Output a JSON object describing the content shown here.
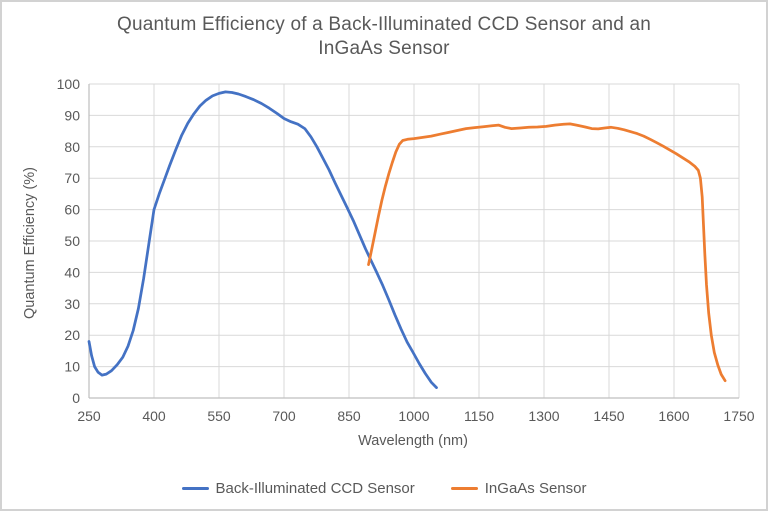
{
  "title": {
    "line1": "Quantum Efficiency of a Back-Illuminated CCD Sensor and an",
    "line2": "InGaAs Sensor"
  },
  "axes": {
    "x_title": "Wavelength (nm)",
    "y_title": "Quantum Efficiency (%)"
  },
  "legend": {
    "items": [
      {
        "label": "Back-Illuminated CCD Sensor",
        "color": "#4472C4"
      },
      {
        "label": "InGaAs Sensor",
        "color": "#ED7D31"
      }
    ]
  },
  "colors": {
    "gridline": "#d9d9d9",
    "axis_line": "#bfbfbf",
    "text": "#595959",
    "background": "#ffffff",
    "frame_border": "#d2d2d2"
  },
  "chart_data": {
    "type": "line",
    "title": "Quantum Efficiency of a Back-Illuminated CCD Sensor and an InGaAs Sensor",
    "xlabel": "Wavelength (nm)",
    "ylabel": "Quantum Efficiency (%)",
    "xlim": [
      250,
      1750
    ],
    "ylim": [
      0,
      100
    ],
    "x_ticks": [
      250,
      400,
      550,
      700,
      850,
      1000,
      1150,
      1300,
      1450,
      1600,
      1750
    ],
    "y_ticks": [
      0,
      10,
      20,
      30,
      40,
      50,
      60,
      70,
      80,
      90,
      100
    ],
    "grid": true,
    "legend_position": "bottom",
    "series": [
      {
        "name": "Back-Illuminated CCD Sensor",
        "color": "#4472C4",
        "points": [
          [
            250,
            18
          ],
          [
            256,
            13.5
          ],
          [
            263,
            10
          ],
          [
            271,
            8.2
          ],
          [
            280,
            7.3
          ],
          [
            290,
            7.6
          ],
          [
            302,
            8.7
          ],
          [
            315,
            10.6
          ],
          [
            328,
            13
          ],
          [
            340,
            16.5
          ],
          [
            352,
            21.5
          ],
          [
            364,
            28.5
          ],
          [
            376,
            38
          ],
          [
            388,
            49
          ],
          [
            400,
            60
          ],
          [
            412,
            65
          ],
          [
            424,
            69.5
          ],
          [
            436,
            74
          ],
          [
            450,
            79
          ],
          [
            464,
            83.7
          ],
          [
            478,
            87.5
          ],
          [
            492,
            90.5
          ],
          [
            506,
            93
          ],
          [
            520,
            94.8
          ],
          [
            535,
            96.2
          ],
          [
            550,
            97
          ],
          [
            565,
            97.5
          ],
          [
            580,
            97.3
          ],
          [
            595,
            96.8
          ],
          [
            612,
            96
          ],
          [
            630,
            95
          ],
          [
            648,
            93.8
          ],
          [
            666,
            92.3
          ],
          [
            684,
            90.6
          ],
          [
            700,
            89
          ],
          [
            716,
            88
          ],
          [
            732,
            87.2
          ],
          [
            748,
            85.8
          ],
          [
            762,
            83.2
          ],
          [
            776,
            80
          ],
          [
            790,
            76.3
          ],
          [
            804,
            72.6
          ],
          [
            818,
            68.5
          ],
          [
            832,
            64.5
          ],
          [
            846,
            60.5
          ],
          [
            860,
            56.5
          ],
          [
            874,
            52
          ],
          [
            888,
            47.5
          ],
          [
            900,
            44
          ],
          [
            914,
            40
          ],
          [
            928,
            35.8
          ],
          [
            942,
            31.2
          ],
          [
            956,
            26.5
          ],
          [
            970,
            22
          ],
          [
            984,
            17.8
          ],
          [
            998,
            14.5
          ],
          [
            1012,
            11
          ],
          [
            1026,
            7.8
          ],
          [
            1040,
            5
          ],
          [
            1052,
            3.3
          ]
        ]
      },
      {
        "name": "InGaAs Sensor",
        "color": "#ED7D31",
        "points": [
          [
            895,
            42.5
          ],
          [
            902,
            47
          ],
          [
            910,
            52.5
          ],
          [
            918,
            58
          ],
          [
            926,
            63
          ],
          [
            934,
            67.5
          ],
          [
            942,
            71.5
          ],
          [
            950,
            75
          ],
          [
            958,
            78.3
          ],
          [
            966,
            80.8
          ],
          [
            974,
            82
          ],
          [
            985,
            82.4
          ],
          [
            1000,
            82.6
          ],
          [
            1020,
            83
          ],
          [
            1040,
            83.4
          ],
          [
            1060,
            84
          ],
          [
            1080,
            84.6
          ],
          [
            1100,
            85.2
          ],
          [
            1120,
            85.8
          ],
          [
            1140,
            86.1
          ],
          [
            1160,
            86.4
          ],
          [
            1180,
            86.7
          ],
          [
            1195,
            86.9
          ],
          [
            1210,
            86.2
          ],
          [
            1225,
            85.8
          ],
          [
            1245,
            86
          ],
          [
            1265,
            86.2
          ],
          [
            1285,
            86.3
          ],
          [
            1305,
            86.5
          ],
          [
            1325,
            86.9
          ],
          [
            1345,
            87.2
          ],
          [
            1360,
            87.3
          ],
          [
            1375,
            86.9
          ],
          [
            1395,
            86.3
          ],
          [
            1410,
            85.8
          ],
          [
            1425,
            85.7
          ],
          [
            1440,
            86
          ],
          [
            1455,
            86.2
          ],
          [
            1470,
            85.9
          ],
          [
            1485,
            85.4
          ],
          [
            1500,
            84.8
          ],
          [
            1515,
            84.2
          ],
          [
            1530,
            83.4
          ],
          [
            1545,
            82.4
          ],
          [
            1560,
            81.3
          ],
          [
            1575,
            80.2
          ],
          [
            1590,
            79
          ],
          [
            1605,
            77.8
          ],
          [
            1620,
            76.5
          ],
          [
            1635,
            75.2
          ],
          [
            1648,
            73.8
          ],
          [
            1656,
            72.5
          ],
          [
            1661,
            70
          ],
          [
            1665,
            64
          ],
          [
            1668,
            55
          ],
          [
            1671,
            46
          ],
          [
            1675,
            36
          ],
          [
            1680,
            27
          ],
          [
            1686,
            20
          ],
          [
            1693,
            14.5
          ],
          [
            1701,
            10.5
          ],
          [
            1709,
            7.5
          ],
          [
            1718,
            5.5
          ]
        ]
      }
    ]
  }
}
